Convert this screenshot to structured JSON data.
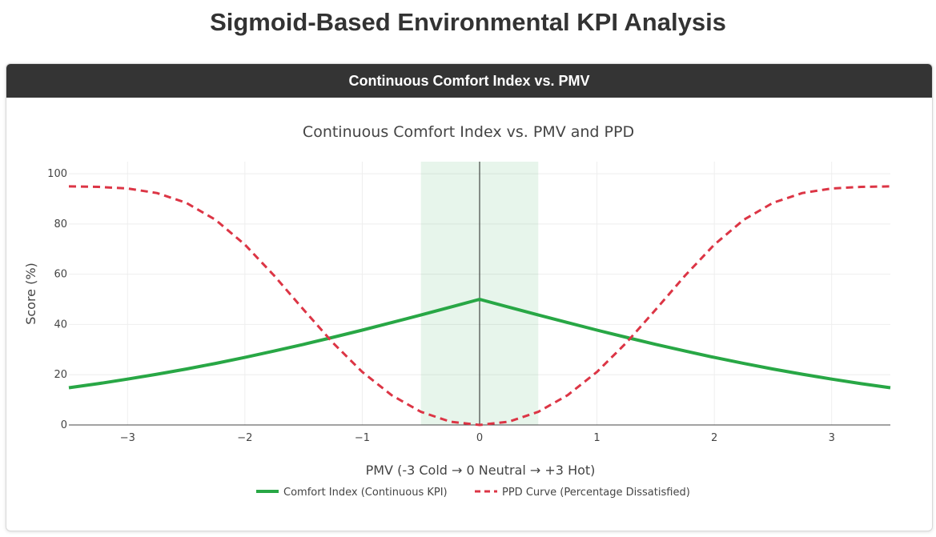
{
  "page_title": "Sigmoid-Based Environmental KPI Analysis",
  "card": {
    "header": "Continuous Comfort Index vs. PMV"
  },
  "colors": {
    "comfort": "#28a745",
    "ppd": "#dc3545",
    "band": "rgba(40,167,69,0.11)",
    "header_bg": "#343434"
  },
  "chart_data": {
    "type": "line",
    "title": "Continuous Comfort Index vs. PMV and PPD",
    "xlabel": "PMV (-3 Cold → 0 Neutral → +3 Hot)",
    "ylabel": "Score (%)",
    "xlim": [
      -3.5,
      3.5
    ],
    "ylim": [
      0,
      104.8
    ],
    "xticks": [
      -3,
      -2,
      -1,
      0,
      1,
      2,
      3
    ],
    "xtick_labels": [
      "−3",
      "−2",
      "−1",
      "0",
      "1",
      "2",
      "3"
    ],
    "yticks": [
      0,
      20,
      40,
      60,
      80,
      100
    ],
    "ytick_labels": [
      "0",
      "20",
      "40",
      "60",
      "80",
      "100"
    ],
    "grid": true,
    "legend_position": "bottom-center",
    "comfort_band": [
      -0.5,
      0.5
    ],
    "vline_x": 0,
    "x": [
      -3.5,
      -3.25,
      -3,
      -2.75,
      -2.5,
      -2.25,
      -2,
      -1.75,
      -1.5,
      -1.25,
      -1,
      -0.75,
      -0.5,
      -0.25,
      0,
      0.25,
      0.5,
      0.75,
      1,
      1.25,
      1.5,
      1.75,
      2,
      2.25,
      2.5,
      2.75,
      3,
      3.25,
      3.5
    ],
    "series": [
      {
        "name": "Comfort Index (Continuous KPI)",
        "style": "solid",
        "values": [
          14.8,
          16.45,
          18.24,
          20.18,
          22.27,
          24.51,
          26.89,
          29.42,
          32.08,
          34.87,
          37.75,
          40.73,
          43.78,
          46.88,
          50,
          46.88,
          43.78,
          40.73,
          37.75,
          34.87,
          32.08,
          29.42,
          26.89,
          24.51,
          22.27,
          20.18,
          18.24,
          16.45,
          14.8
        ]
      },
      {
        "name": "PPD Curve (Percentage Dissatisfied)",
        "style": "dash",
        "values": [
          94.96,
          94.77,
          94.12,
          92.31,
          88.44,
          81.65,
          71.76,
          59.41,
          45.91,
          32.73,
          21.12,
          11.85,
          5.23,
          1.3,
          0,
          1.3,
          5.23,
          11.85,
          21.12,
          32.73,
          45.91,
          59.41,
          71.76,
          81.65,
          88.44,
          92.31,
          94.12,
          94.77,
          94.96
        ]
      }
    ]
  }
}
